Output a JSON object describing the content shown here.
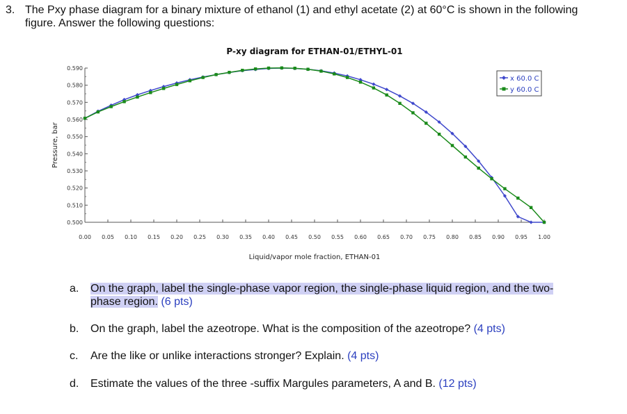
{
  "question": {
    "number": "3.",
    "text": "The Pxy phase diagram for a binary mixture of ethanol (1) and ethyl acetate (2) at 60°C is shown in the following figure. Answer the following questions:"
  },
  "chart_data": {
    "type": "line",
    "title": "P-xy diagram for ETHAN-01/ETHYL-01",
    "xlabel": "Liquid/vapor mole fraction, ETHAN-01",
    "ylabel": "Pressure, bar",
    "xlim": [
      0,
      1
    ],
    "ylim": [
      0.5,
      0.59
    ],
    "xticks": [
      "0.00",
      "0.05",
      "0.10",
      "0.15",
      "0.20",
      "0.25",
      "0.30",
      "0.35",
      "0.40",
      "0.45",
      "0.50",
      "0.55",
      "0.60",
      "0.65",
      "0.70",
      "0.75",
      "0.80",
      "0.85",
      "0.90",
      "0.95",
      "1.00"
    ],
    "yticks": [
      "0.500",
      "0.510",
      "0.520",
      "0.530",
      "0.540",
      "0.550",
      "0.560",
      "0.570",
      "0.580",
      "0.590"
    ],
    "legend_position": "top-right",
    "series": [
      {
        "name": "x  60.0 C",
        "color": "#3f48cc",
        "marker": "diamond",
        "x": [
          0,
          0.0286,
          0.0571,
          0.0857,
          0.1143,
          0.1429,
          0.1714,
          0.2,
          0.2286,
          0.2571,
          0.2857,
          0.3143,
          0.3429,
          0.3714,
          0.4,
          0.4286,
          0.4571,
          0.4857,
          0.5143,
          0.5429,
          0.5714,
          0.6,
          0.6286,
          0.6571,
          0.6857,
          0.7143,
          0.7429,
          0.7714,
          0.8,
          0.8286,
          0.8571,
          0.8857,
          0.9143,
          0.9429,
          0.9714,
          1.0
        ],
        "y": [
          0.5607,
          0.5648,
          0.5683,
          0.5716,
          0.5744,
          0.5769,
          0.5792,
          0.5813,
          0.5832,
          0.5848,
          0.5862,
          0.5874,
          0.5885,
          0.5892,
          0.5898,
          0.59,
          0.5898,
          0.5893,
          0.5884,
          0.5871,
          0.5854,
          0.5832,
          0.5806,
          0.5775,
          0.5737,
          0.5694,
          0.5643,
          0.5585,
          0.5518,
          0.5443,
          0.5357,
          0.5261,
          0.5154,
          0.5033,
          0.49,
          0.4987
        ]
      },
      {
        "name": "y  60.0 C",
        "color": "#1a8a1a",
        "marker": "square",
        "x": [
          0,
          0.0286,
          0.0571,
          0.0857,
          0.1143,
          0.1429,
          0.1714,
          0.2,
          0.2286,
          0.2571,
          0.2857,
          0.3143,
          0.3429,
          0.3714,
          0.4,
          0.4286,
          0.4571,
          0.4857,
          0.5143,
          0.5429,
          0.5714,
          0.6,
          0.6286,
          0.6571,
          0.6857,
          0.7143,
          0.7429,
          0.7714,
          0.8,
          0.8286,
          0.8571,
          0.8857,
          0.9143,
          0.9429,
          0.9714,
          1.0
        ],
        "y": [
          0.5607,
          0.5644,
          0.5675,
          0.5704,
          0.5731,
          0.5757,
          0.5781,
          0.5804,
          0.5826,
          0.5845,
          0.5862,
          0.5875,
          0.5887,
          0.5895,
          0.59,
          0.5901,
          0.5899,
          0.5893,
          0.5882,
          0.5866,
          0.5845,
          0.5818,
          0.5784,
          0.5743,
          0.5694,
          0.5639,
          0.5578,
          0.5514,
          0.5448,
          0.5381,
          0.5316,
          0.5254,
          0.5196,
          0.5141,
          0.5086,
          0.4987
        ]
      }
    ]
  },
  "subquestions": [
    {
      "letter": "a.",
      "text": "On the graph, label the single-phase vapor region, the single-phase liquid region, and the two-phase region.",
      "pts": "(6 pts)"
    },
    {
      "letter": "b.",
      "text": "On the graph, label the azeotrope. What is the composition of the azeotrope?",
      "pts": "(4 pts)"
    },
    {
      "letter": "c.",
      "text": "Are the like or unlike interactions stronger? Explain.",
      "pts": "(4 pts)"
    },
    {
      "letter": "d.",
      "text": "Estimate the values of the three -suffix Margules parameters, A and B.",
      "pts": "(12 pts)"
    }
  ]
}
